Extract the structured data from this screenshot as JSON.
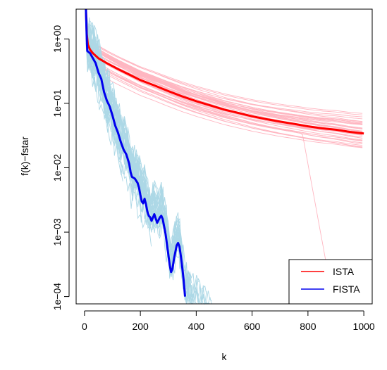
{
  "chart_data": {
    "type": "line",
    "title": "",
    "xlabel": "k",
    "ylabel": "f(k)−fstar",
    "y_scale": "log10",
    "xlim": [
      -30,
      1030
    ],
    "ylim": [
      7.7e-05,
      2.9
    ],
    "x_ticks": [
      {
        "value": 0,
        "label": "0"
      },
      {
        "value": 200,
        "label": "200"
      },
      {
        "value": 400,
        "label": "400"
      },
      {
        "value": 600,
        "label": "600"
      },
      {
        "value": 800,
        "label": "800"
      },
      {
        "value": 1000,
        "label": "1000"
      }
    ],
    "y_ticks": [
      {
        "value": 1,
        "label": "1e+00"
      },
      {
        "value": 0.1,
        "label": "1e−01"
      },
      {
        "value": 0.01,
        "label": "1e−02"
      },
      {
        "value": 0.001,
        "label": "1e−03"
      },
      {
        "value": 0.0001,
        "label": "1e−04"
      }
    ],
    "grid": false,
    "legend_position": "bottom-right",
    "series": [
      {
        "name": "ISTA",
        "color": "#ff0000",
        "points": [
          [
            5,
            2.9
          ],
          [
            8,
            1.2
          ],
          [
            12,
            0.82
          ],
          [
            20,
            0.68
          ],
          [
            30,
            0.6
          ],
          [
            50,
            0.5
          ],
          [
            80,
            0.42
          ],
          [
            120,
            0.34
          ],
          [
            160,
            0.28
          ],
          [
            200,
            0.23
          ],
          [
            250,
            0.19
          ],
          [
            300,
            0.155
          ],
          [
            350,
            0.128
          ],
          [
            400,
            0.108
          ],
          [
            450,
            0.093
          ],
          [
            500,
            0.08
          ],
          [
            550,
            0.071
          ],
          [
            600,
            0.063
          ],
          [
            650,
            0.057
          ],
          [
            700,
            0.052
          ],
          [
            750,
            0.048
          ],
          [
            800,
            0.044
          ],
          [
            850,
            0.041
          ],
          [
            900,
            0.039
          ],
          [
            950,
            0.036
          ],
          [
            1000,
            0.034
          ]
        ]
      },
      {
        "name": "FISTA",
        "color": "#0000ee",
        "points": [
          [
            5,
            2.9
          ],
          [
            8,
            1.0
          ],
          [
            10,
            0.65
          ],
          [
            20,
            0.6
          ],
          [
            30,
            0.5
          ],
          [
            40,
            0.42
          ],
          [
            50,
            0.3
          ],
          [
            60,
            0.24
          ],
          [
            70,
            0.15
          ],
          [
            80,
            0.11
          ],
          [
            90,
            0.09
          ],
          [
            100,
            0.065
          ],
          [
            110,
            0.045
          ],
          [
            120,
            0.035
          ],
          [
            130,
            0.025
          ],
          [
            140,
            0.019
          ],
          [
            150,
            0.016
          ],
          [
            160,
            0.0115
          ],
          [
            165,
            0.0085
          ],
          [
            170,
            0.0072
          ],
          [
            180,
            0.0068
          ],
          [
            190,
            0.0058
          ],
          [
            195,
            0.0049
          ],
          [
            200,
            0.0038
          ],
          [
            205,
            0.003
          ],
          [
            210,
            0.0028
          ],
          [
            215,
            0.0033
          ],
          [
            220,
            0.0027
          ],
          [
            225,
            0.0021
          ],
          [
            230,
            0.0018
          ],
          [
            235,
            0.0017
          ],
          [
            240,
            0.0015
          ],
          [
            250,
            0.0019
          ],
          [
            260,
            0.0014
          ],
          [
            270,
            0.0017
          ],
          [
            275,
            0.0018
          ],
          [
            280,
            0.0016
          ],
          [
            290,
            0.00095
          ],
          [
            300,
            0.00045
          ],
          [
            305,
            0.00031
          ],
          [
            310,
            0.00024
          ],
          [
            315,
            0.00027
          ],
          [
            320,
            0.00038
          ],
          [
            330,
            0.00062
          ],
          [
            335,
            0.00068
          ],
          [
            340,
            0.0006
          ],
          [
            345,
            0.00042
          ],
          [
            350,
            0.00028
          ],
          [
            355,
            0.00018
          ],
          [
            360,
            0.0001
          ]
        ]
      }
    ]
  }
}
